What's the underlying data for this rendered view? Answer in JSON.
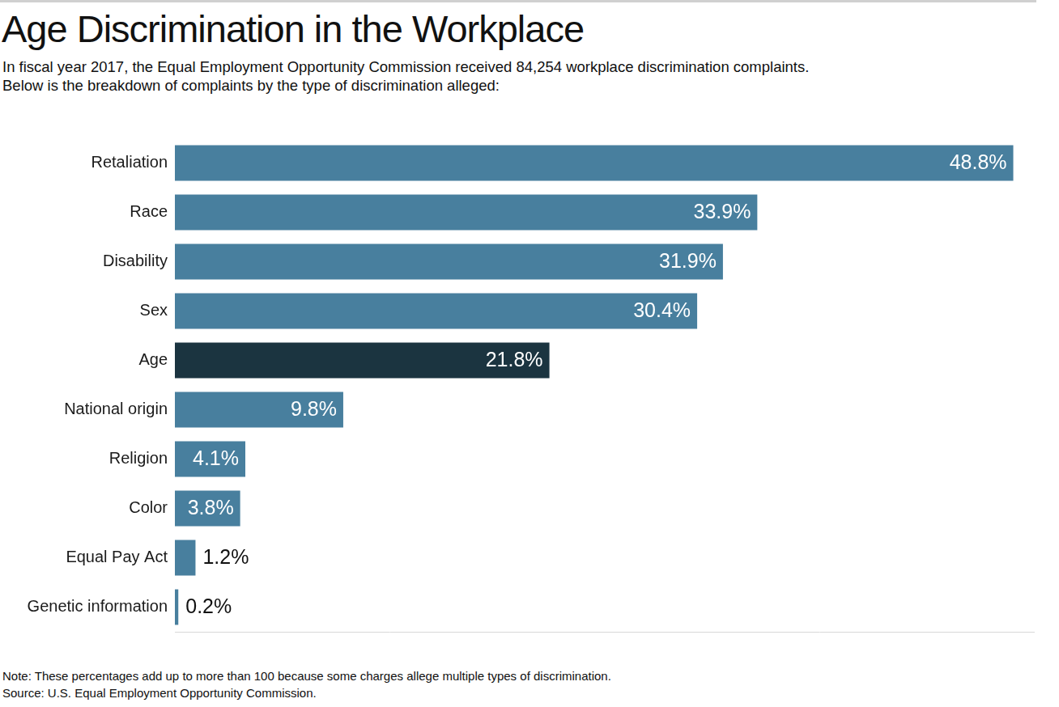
{
  "chart_data": {
    "type": "bar",
    "orientation": "horizontal",
    "title": "Age Discrimination in the Workplace",
    "subtitle": [
      "In fiscal year 2017, the Equal Employment Opportunity Commission received 84,254 workplace discrimination complaints.",
      "Below is the breakdown of complaints by the type of discrimination alleged:"
    ],
    "categories": [
      "Retaliation",
      "Race",
      "Disability",
      "Sex",
      "Age",
      "National origin",
      "Religion",
      "Color",
      "Equal Pay Act",
      "Genetic information"
    ],
    "values": [
      48.8,
      33.9,
      31.9,
      30.4,
      21.8,
      9.8,
      4.1,
      3.8,
      1.2,
      0.2
    ],
    "value_labels": [
      "48.8%",
      "33.9%",
      "31.9%",
      "30.4%",
      "21.8%",
      "9.8%",
      "4.1%",
      "3.8%",
      "1.2%",
      "0.2%"
    ],
    "colors": [
      "#487f9e",
      "#487f9e",
      "#487f9e",
      "#487f9e",
      "#1b3440",
      "#487f9e",
      "#487f9e",
      "#487f9e",
      "#487f9e",
      "#487f9e"
    ],
    "xlim": [
      0,
      50
    ],
    "grid": false,
    "data_labels": true,
    "tick_labels": "y",
    "note": "Note: These percentages add up to more than 100 because some charges allege multiple types of discrimination.",
    "source": "Source: U.S. Equal Employment Opportunity Commission."
  }
}
